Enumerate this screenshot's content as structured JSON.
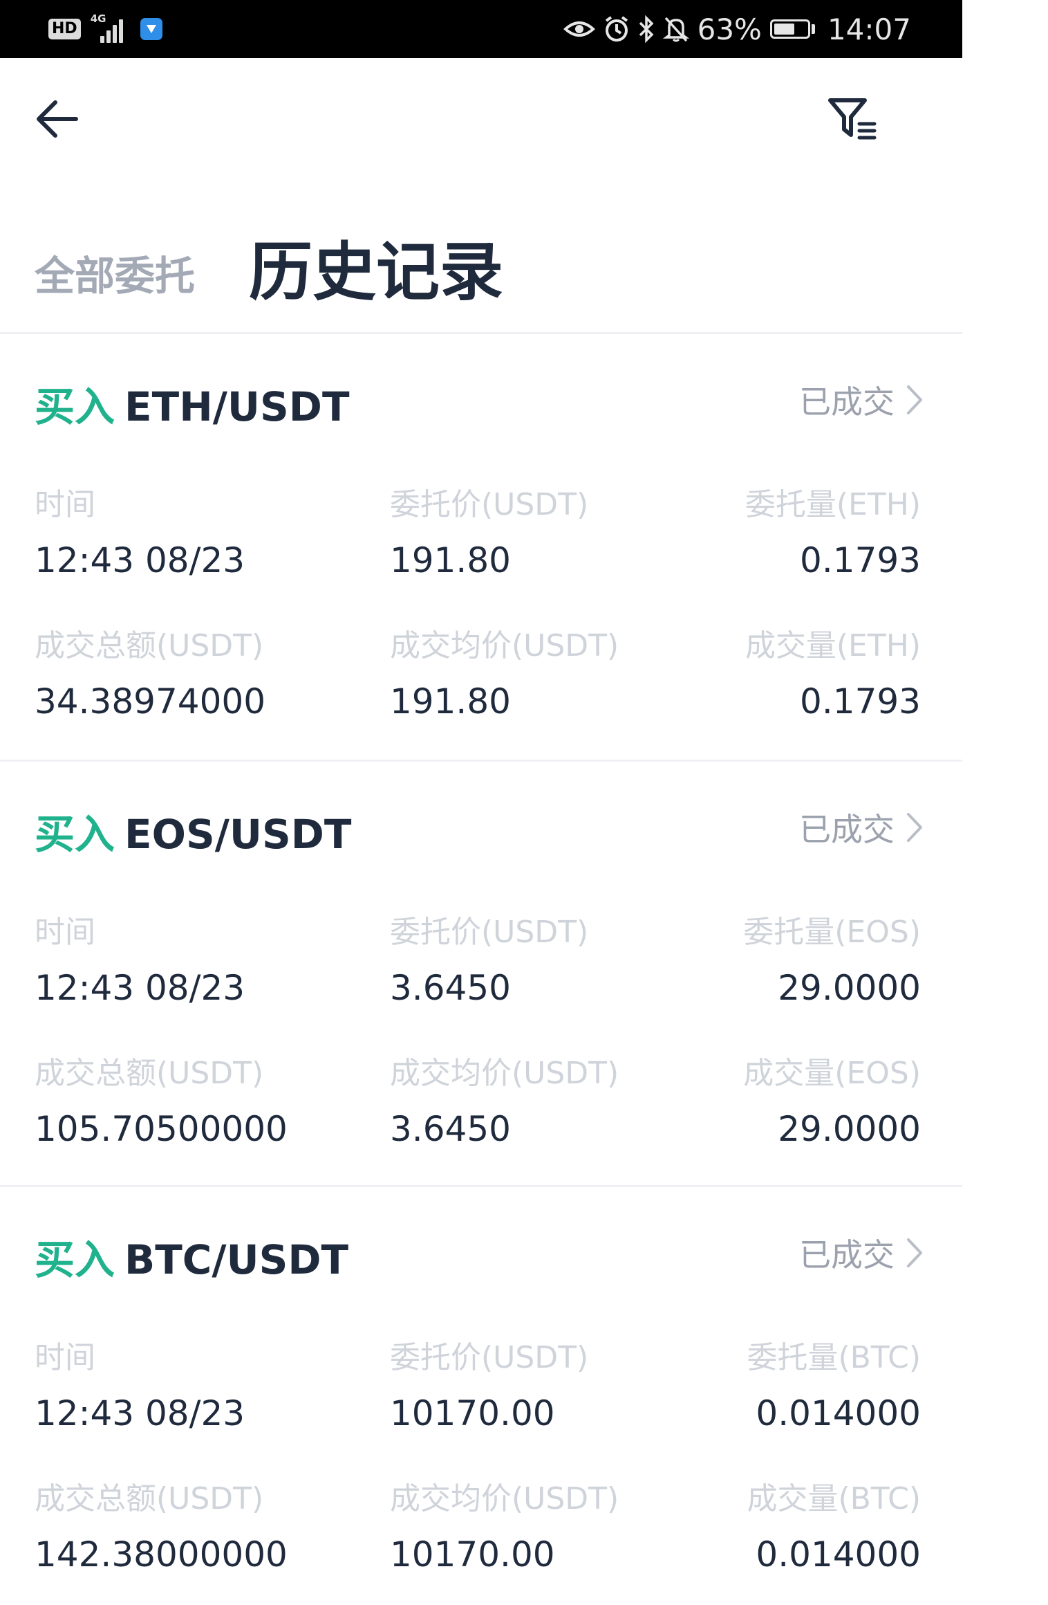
{
  "status_bar": {
    "hd_badge": "HD",
    "network": "4G",
    "battery_percent": "63%",
    "battery_level": 0.63,
    "time": "14:07",
    "icons": [
      "hd-icon",
      "signal-icon",
      "app-notification-icon",
      "eye-icon",
      "alarm-icon",
      "bluetooth-icon",
      "mute-bell-icon",
      "battery-icon"
    ]
  },
  "nav": {
    "back_icon": "arrow-left-icon",
    "filter_icon": "filter-icon"
  },
  "tabs": {
    "all_orders": "全部委托",
    "history": "历史记录",
    "active": "history"
  },
  "colors": {
    "buy_green": "#20b28c",
    "text_dark": "#1f2a3d",
    "text_muted": "#9ba1ad",
    "label_light": "#cfd3da"
  },
  "orders": [
    {
      "side": "买入",
      "pair": "ETH/USDT",
      "status": "已成交",
      "labels": {
        "time": "时间",
        "order_price": "委托价(USDT)",
        "order_amount": "委托量(ETH)",
        "total": "成交总额(USDT)",
        "avg_price": "成交均价(USDT)",
        "filled": "成交量(ETH)"
      },
      "values": {
        "time": "12:43 08/23",
        "order_price": "191.80",
        "order_amount": "0.1793",
        "total": "34.38974000",
        "avg_price": "191.80",
        "filled": "0.1793"
      }
    },
    {
      "side": "买入",
      "pair": "EOS/USDT",
      "status": "已成交",
      "labels": {
        "time": "时间",
        "order_price": "委托价(USDT)",
        "order_amount": "委托量(EOS)",
        "total": "成交总额(USDT)",
        "avg_price": "成交均价(USDT)",
        "filled": "成交量(EOS)"
      },
      "values": {
        "time": "12:43 08/23",
        "order_price": "3.6450",
        "order_amount": "29.0000",
        "total": "105.70500000",
        "avg_price": "3.6450",
        "filled": "29.0000"
      }
    },
    {
      "side": "买入",
      "pair": "BTC/USDT",
      "status": "已成交",
      "labels": {
        "time": "时间",
        "order_price": "委托价(USDT)",
        "order_amount": "委托量(BTC)",
        "total": "成交总额(USDT)",
        "avg_price": "成交均价(USDT)",
        "filled": "成交量(BTC)"
      },
      "values": {
        "time": "12:43 08/23",
        "order_price": "10170.00",
        "order_amount": "0.014000",
        "total": "142.38000000",
        "avg_price": "10170.00",
        "filled": "0.014000"
      }
    }
  ]
}
